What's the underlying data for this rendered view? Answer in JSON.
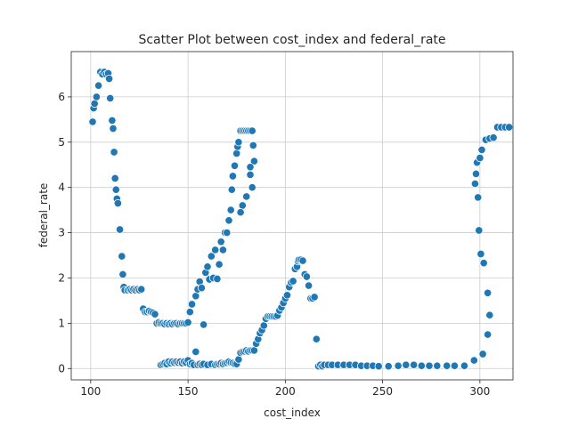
{
  "chart_data": {
    "type": "scatter",
    "title": "Scatter Plot between cost_index and federal_rate",
    "xlabel": "cost_index",
    "ylabel": "federal_rate",
    "xlim": [
      90,
      317
    ],
    "ylim": [
      -0.25,
      7.0
    ],
    "xticks": [
      100,
      150,
      200,
      250,
      300
    ],
    "yticks": [
      0,
      1,
      2,
      3,
      4,
      5,
      6
    ],
    "grid": true,
    "color": "#1f77b4",
    "points": [
      [
        101,
        5.45
      ],
      [
        101.5,
        5.75
      ],
      [
        102,
        5.85
      ],
      [
        103,
        6.0
      ],
      [
        104,
        6.25
      ],
      [
        105,
        6.55
      ],
      [
        106,
        6.5
      ],
      [
        107,
        6.55
      ],
      [
        108,
        6.5
      ],
      [
        109,
        6.52
      ],
      [
        109.5,
        6.4
      ],
      [
        110,
        5.97
      ],
      [
        111,
        5.48
      ],
      [
        111.5,
        5.3
      ],
      [
        112,
        4.78
      ],
      [
        112.5,
        4.2
      ],
      [
        113,
        3.95
      ],
      [
        113.5,
        3.75
      ],
      [
        114,
        3.65
      ],
      [
        115,
        3.07
      ],
      [
        116,
        2.48
      ],
      [
        116.5,
        2.08
      ],
      [
        117,
        1.8
      ],
      [
        117.5,
        1.73
      ],
      [
        119,
        1.73
      ],
      [
        120,
        1.75
      ],
      [
        121,
        1.73
      ],
      [
        122,
        1.75
      ],
      [
        123,
        1.73
      ],
      [
        124,
        1.75
      ],
      [
        125,
        1.73
      ],
      [
        126,
        1.75
      ],
      [
        127,
        1.32
      ],
      [
        128,
        1.25
      ],
      [
        129,
        1.25
      ],
      [
        130,
        1.27
      ],
      [
        131,
        1.25
      ],
      [
        132,
        1.23
      ],
      [
        133,
        1.2
      ],
      [
        134,
        1.0
      ],
      [
        135,
        1.02
      ],
      [
        136,
        1.0
      ],
      [
        137,
        1.0
      ],
      [
        138,
        0.98
      ],
      [
        139,
        1.0
      ],
      [
        140,
        0.98
      ],
      [
        141,
        1.0
      ],
      [
        142,
        0.98
      ],
      [
        143,
        1.0
      ],
      [
        144,
        1.0
      ],
      [
        145,
        0.98
      ],
      [
        146,
        1.0
      ],
      [
        147,
        1.0
      ],
      [
        148,
        1.0
      ],
      [
        149,
        1.0
      ],
      [
        150,
        1.02
      ],
      [
        151,
        1.25
      ],
      [
        152,
        1.42
      ],
      [
        154,
        1.6
      ],
      [
        155,
        1.75
      ],
      [
        156,
        1.92
      ],
      [
        157,
        1.78
      ],
      [
        158,
        0.97
      ],
      [
        159,
        2.12
      ],
      [
        160,
        2.25
      ],
      [
        161,
        1.97
      ],
      [
        162,
        2.48
      ],
      [
        163,
        2.0
      ],
      [
        164,
        2.62
      ],
      [
        165,
        1.98
      ],
      [
        166,
        2.3
      ],
      [
        167,
        2.8
      ],
      [
        168,
        2.62
      ],
      [
        169,
        3.0
      ],
      [
        170,
        3.0
      ],
      [
        171,
        3.27
      ],
      [
        172,
        3.5
      ],
      [
        172.5,
        3.95
      ],
      [
        173,
        4.25
      ],
      [
        174,
        4.48
      ],
      [
        175,
        4.75
      ],
      [
        175.5,
        4.9
      ],
      [
        176,
        5.0
      ],
      [
        177,
        5.25
      ],
      [
        178,
        5.25
      ],
      [
        179,
        5.25
      ],
      [
        180,
        5.25
      ],
      [
        181,
        5.25
      ],
      [
        182,
        5.25
      ],
      [
        183,
        5.25
      ],
      [
        183.5,
        4.93
      ],
      [
        184,
        4.58
      ],
      [
        183,
        4.0
      ],
      [
        182,
        4.28
      ],
      [
        180,
        3.8
      ],
      [
        178,
        3.6
      ],
      [
        177,
        3.45
      ],
      [
        182,
        4.45
      ],
      [
        136,
        0.08
      ],
      [
        137,
        0.1
      ],
      [
        138,
        0.12
      ],
      [
        139,
        0.1
      ],
      [
        140,
        0.15
      ],
      [
        141,
        0.12
      ],
      [
        142,
        0.15
      ],
      [
        143,
        0.13
      ],
      [
        144,
        0.15
      ],
      [
        145,
        0.13
      ],
      [
        146,
        0.15
      ],
      [
        147,
        0.12
      ],
      [
        148,
        0.15
      ],
      [
        149,
        0.13
      ],
      [
        150,
        0.18
      ],
      [
        151,
        0.1
      ],
      [
        152,
        0.12
      ],
      [
        153,
        0.08
      ],
      [
        154,
        0.37
      ],
      [
        155,
        0.08
      ],
      [
        156,
        0.1
      ],
      [
        157,
        0.08
      ],
      [
        158,
        0.1
      ],
      [
        160,
        0.08
      ],
      [
        162,
        0.1
      ],
      [
        164,
        0.08
      ],
      [
        165,
        0.1
      ],
      [
        166,
        0.1
      ],
      [
        167,
        0.12
      ],
      [
        168,
        0.1
      ],
      [
        169,
        0.12
      ],
      [
        170,
        0.13
      ],
      [
        171,
        0.15
      ],
      [
        172,
        0.13
      ],
      [
        173,
        0.12
      ],
      [
        174,
        0.1
      ],
      [
        175,
        0.1
      ],
      [
        176,
        0.2
      ],
      [
        177,
        0.35
      ],
      [
        178,
        0.37
      ],
      [
        179,
        0.38
      ],
      [
        180,
        0.4
      ],
      [
        181,
        0.38
      ],
      [
        182,
        0.4
      ],
      [
        183,
        0.4
      ],
      [
        184,
        0.4
      ],
      [
        185,
        0.55
      ],
      [
        186,
        0.65
      ],
      [
        187,
        0.78
      ],
      [
        188,
        0.85
      ],
      [
        189,
        0.95
      ],
      [
        190,
        1.1
      ],
      [
        191,
        1.15
      ],
      [
        192,
        1.15
      ],
      [
        193,
        1.15
      ],
      [
        194,
        1.15
      ],
      [
        195,
        1.15
      ],
      [
        196,
        1.17
      ],
      [
        197,
        1.28
      ],
      [
        198,
        1.35
      ],
      [
        199,
        1.45
      ],
      [
        200,
        1.55
      ],
      [
        201,
        1.62
      ],
      [
        202,
        1.8
      ],
      [
        203,
        1.9
      ],
      [
        204,
        1.93
      ],
      [
        205,
        2.2
      ],
      [
        206,
        2.25
      ],
      [
        206.5,
        2.37
      ],
      [
        207,
        2.4
      ],
      [
        208,
        2.4
      ],
      [
        209,
        2.38
      ],
      [
        210,
        2.08
      ],
      [
        211,
        2.03
      ],
      [
        212,
        1.83
      ],
      [
        213,
        1.55
      ],
      [
        214,
        1.55
      ],
      [
        215,
        1.58
      ],
      [
        216,
        0.65
      ],
      [
        217,
        0.05
      ],
      [
        218,
        0.08
      ],
      [
        219,
        0.05
      ],
      [
        220,
        0.08
      ],
      [
        222,
        0.08
      ],
      [
        224,
        0.08
      ],
      [
        227,
        0.08
      ],
      [
        230,
        0.08
      ],
      [
        233,
        0.08
      ],
      [
        236,
        0.08
      ],
      [
        239,
        0.06
      ],
      [
        242,
        0.06
      ],
      [
        245,
        0.06
      ],
      [
        248,
        0.05
      ],
      [
        253,
        0.05
      ],
      [
        258,
        0.06
      ],
      [
        262,
        0.08
      ],
      [
        266,
        0.08
      ],
      [
        270,
        0.06
      ],
      [
        274,
        0.06
      ],
      [
        278,
        0.06
      ],
      [
        283,
        0.06
      ],
      [
        287,
        0.06
      ],
      [
        292,
        0.06
      ],
      [
        297,
        0.18
      ],
      [
        297.5,
        4.08
      ],
      [
        298,
        4.3
      ],
      [
        298.5,
        4.55
      ],
      [
        299,
        3.78
      ],
      [
        299.5,
        3.05
      ],
      [
        300,
        4.65
      ],
      [
        300.5,
        2.53
      ],
      [
        301,
        4.83
      ],
      [
        301.5,
        0.32
      ],
      [
        302,
        2.33
      ],
      [
        303,
        5.05
      ],
      [
        304,
        0.75
      ],
      [
        304,
        1.67
      ],
      [
        305,
        1.18
      ],
      [
        305,
        5.08
      ],
      [
        307,
        5.1
      ],
      [
        309,
        5.33
      ],
      [
        311,
        5.33
      ],
      [
        313,
        5.33
      ],
      [
        315,
        5.33
      ]
    ]
  }
}
